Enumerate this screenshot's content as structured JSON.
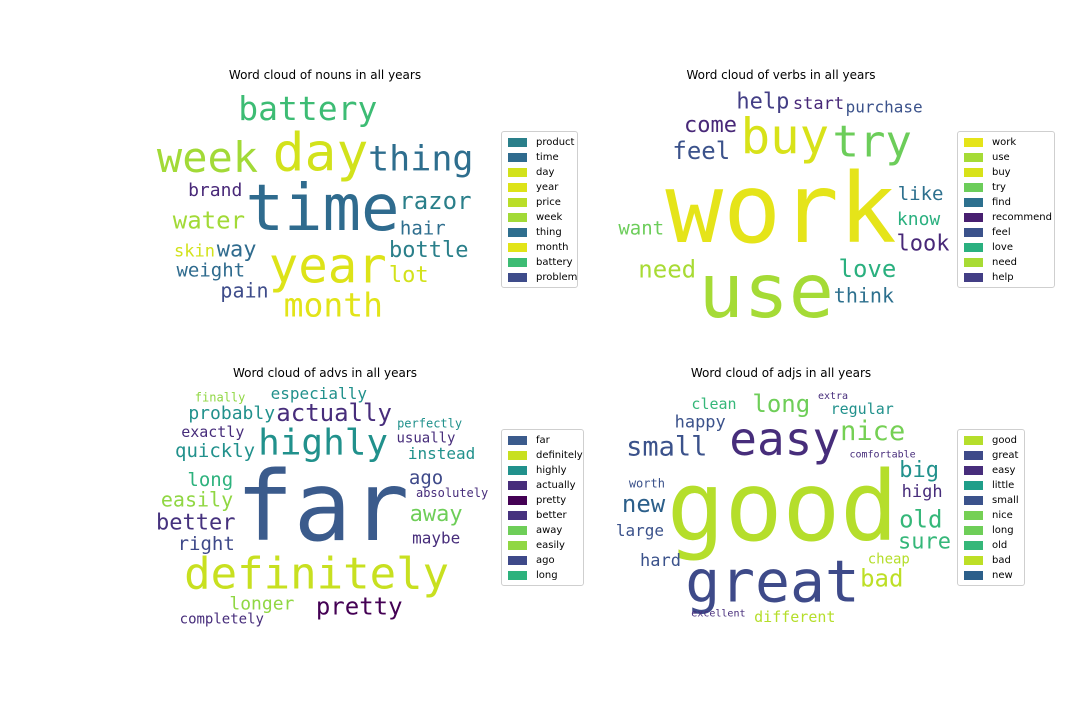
{
  "chart_data": [
    {
      "type": "wordcloud",
      "title": "Word cloud of nouns in all years",
      "legend": [
        {
          "word": "product",
          "color": "#2a7f8a"
        },
        {
          "word": "time",
          "color": "#2f6b8e"
        },
        {
          "word": "day",
          "color": "#d2e21b"
        },
        {
          "word": "year",
          "color": "#dde318"
        },
        {
          "word": "price",
          "color": "#bade28"
        },
        {
          "word": "week",
          "color": "#a2da37"
        },
        {
          "word": "thing",
          "color": "#2e6e8e"
        },
        {
          "word": "month",
          "color": "#e2e418"
        },
        {
          "word": "battery",
          "color": "#3dbc74"
        },
        {
          "word": "problem",
          "color": "#3e4c8a"
        }
      ],
      "words": [
        {
          "text": "product",
          "weight": 1.0,
          "color": "#2a7f8a"
        },
        {
          "text": "time",
          "weight": 0.62,
          "color": "#2f6b8e"
        },
        {
          "text": "day",
          "weight": 0.5,
          "color": "#d2e21b"
        },
        {
          "text": "year",
          "weight": 0.45,
          "color": "#dde318"
        },
        {
          "text": "price",
          "weight": 0.42,
          "color": "#bade28"
        },
        {
          "text": "week",
          "weight": 0.38,
          "color": "#a2da37"
        },
        {
          "text": "thing",
          "weight": 0.3,
          "color": "#2e6e8e"
        },
        {
          "text": "month",
          "weight": 0.28,
          "color": "#e2e418"
        },
        {
          "text": "battery",
          "weight": 0.28,
          "color": "#3dbc74"
        },
        {
          "text": "problem",
          "weight": 0.26,
          "color": "#3e4c8a"
        },
        {
          "text": "razor",
          "weight": 0.2,
          "color": "#2a7f8a"
        },
        {
          "text": "water",
          "weight": 0.2,
          "color": "#a2da37"
        },
        {
          "text": "way",
          "weight": 0.18,
          "color": "#2f6b8e"
        },
        {
          "text": "bottle",
          "weight": 0.18,
          "color": "#2a7f8a"
        },
        {
          "text": "lot",
          "weight": 0.18,
          "color": "#d2e21b"
        },
        {
          "text": "pain",
          "weight": 0.16,
          "color": "#3e4c8a"
        },
        {
          "text": "weight",
          "weight": 0.15,
          "color": "#2f6b8e"
        },
        {
          "text": "hair",
          "weight": 0.15,
          "color": "#2e6e8e"
        },
        {
          "text": "brand",
          "weight": 0.14,
          "color": "#482878"
        },
        {
          "text": "skin",
          "weight": 0.13,
          "color": "#d2e21b"
        }
      ]
    },
    {
      "type": "wordcloud",
      "title": "Word cloud of verbs in all years",
      "legend": [
        {
          "word": "work",
          "color": "#e5e419"
        },
        {
          "word": "use",
          "color": "#a5db36"
        },
        {
          "word": "buy",
          "color": "#d8e219"
        },
        {
          "word": "try",
          "color": "#6ccd5a"
        },
        {
          "word": "find",
          "color": "#2d708e"
        },
        {
          "word": "recommend",
          "color": "#481f70"
        },
        {
          "word": "feel",
          "color": "#3b528b"
        },
        {
          "word": "love",
          "color": "#2ab07f"
        },
        {
          "word": "need",
          "color": "#a8db34"
        },
        {
          "word": "help",
          "color": "#433e85"
        }
      ],
      "words": [
        {
          "text": "work",
          "weight": 1.0,
          "color": "#e5e419"
        },
        {
          "text": "use",
          "weight": 0.75,
          "color": "#a5db36"
        },
        {
          "text": "buy",
          "weight": 0.45,
          "color": "#d8e219"
        },
        {
          "text": "try",
          "weight": 0.4,
          "color": "#6ccd5a"
        },
        {
          "text": "find",
          "weight": 0.38,
          "color": "#2d708e"
        },
        {
          "text": "recommend",
          "weight": 0.24,
          "color": "#481f70"
        },
        {
          "text": "feel",
          "weight": 0.2,
          "color": "#3b528b"
        },
        {
          "text": "love",
          "weight": 0.2,
          "color": "#2ab07f"
        },
        {
          "text": "need",
          "weight": 0.2,
          "color": "#a8db34"
        },
        {
          "text": "help",
          "weight": 0.18,
          "color": "#433e85"
        },
        {
          "text": "come",
          "weight": 0.18,
          "color": "#482878"
        },
        {
          "text": "look",
          "weight": 0.18,
          "color": "#482878"
        },
        {
          "text": "think",
          "weight": 0.16,
          "color": "#2d708e"
        },
        {
          "text": "like",
          "weight": 0.15,
          "color": "#2d708e"
        },
        {
          "text": "want",
          "weight": 0.15,
          "color": "#6ccd5a"
        },
        {
          "text": "know",
          "weight": 0.14,
          "color": "#2ab07f"
        },
        {
          "text": "start",
          "weight": 0.13,
          "color": "#482878"
        },
        {
          "text": "purchase",
          "weight": 0.12,
          "color": "#3b528b"
        }
      ]
    },
    {
      "type": "wordcloud",
      "title": "Word cloud of advs in all years",
      "legend": [
        {
          "word": "far",
          "color": "#3b5b8c"
        },
        {
          "word": "definitely",
          "color": "#c8e020"
        },
        {
          "word": "highly",
          "color": "#21918c"
        },
        {
          "word": "actually",
          "color": "#472d7b"
        },
        {
          "word": "pretty",
          "color": "#440154"
        },
        {
          "word": "better",
          "color": "#46327e"
        },
        {
          "word": "away",
          "color": "#6ece58"
        },
        {
          "word": "easily",
          "color": "#90d743"
        },
        {
          "word": "ago",
          "color": "#3e4989"
        },
        {
          "word": "long",
          "color": "#2db27d"
        }
      ],
      "words": [
        {
          "text": "far",
          "weight": 1.0,
          "color": "#3b5b8c"
        },
        {
          "text": "definitely",
          "weight": 0.4,
          "color": "#c8e020"
        },
        {
          "text": "highly",
          "weight": 0.32,
          "color": "#21918c"
        },
        {
          "text": "actually",
          "weight": 0.2,
          "color": "#472d7b"
        },
        {
          "text": "pretty",
          "weight": 0.2,
          "color": "#440154"
        },
        {
          "text": "better",
          "weight": 0.18,
          "color": "#46327e"
        },
        {
          "text": "away",
          "weight": 0.18,
          "color": "#6ece58"
        },
        {
          "text": "easily",
          "weight": 0.16,
          "color": "#90d743"
        },
        {
          "text": "ago",
          "weight": 0.15,
          "color": "#3e4989"
        },
        {
          "text": "long",
          "weight": 0.15,
          "color": "#2db27d"
        },
        {
          "text": "right",
          "weight": 0.15,
          "color": "#3e4989"
        },
        {
          "text": "quickly",
          "weight": 0.15,
          "color": "#21918c"
        },
        {
          "text": "longer",
          "weight": 0.14,
          "color": "#90d743"
        },
        {
          "text": "probably",
          "weight": 0.14,
          "color": "#21918c"
        },
        {
          "text": "instead",
          "weight": 0.12,
          "color": "#21918c"
        },
        {
          "text": "especially",
          "weight": 0.12,
          "color": "#21918c"
        },
        {
          "text": "maybe",
          "weight": 0.12,
          "color": "#472d7b"
        },
        {
          "text": "exactly",
          "weight": 0.11,
          "color": "#472d7b"
        },
        {
          "text": "usually",
          "weight": 0.1,
          "color": "#472d7b"
        },
        {
          "text": "completely",
          "weight": 0.1,
          "color": "#472d7b"
        },
        {
          "text": "absolutely",
          "weight": 0.09,
          "color": "#472d7b"
        },
        {
          "text": "perfectly",
          "weight": 0.09,
          "color": "#21918c"
        },
        {
          "text": "finally",
          "weight": 0.09,
          "color": "#90d743"
        }
      ]
    },
    {
      "type": "wordcloud",
      "title": "Word cloud of adjs in all years",
      "legend": [
        {
          "word": "good",
          "color": "#b5de2b"
        },
        {
          "word": "great",
          "color": "#3e4a89"
        },
        {
          "word": "easy",
          "color": "#472d7b"
        },
        {
          "word": "little",
          "color": "#1f9e89"
        },
        {
          "word": "small",
          "color": "#3b528b"
        },
        {
          "word": "nice",
          "color": "#75d054"
        },
        {
          "word": "long",
          "color": "#6ece58"
        },
        {
          "word": "old",
          "color": "#35b779"
        },
        {
          "word": "bad",
          "color": "#bddf26"
        },
        {
          "word": "new",
          "color": "#2c5f8a"
        }
      ],
      "words": [
        {
          "text": "good",
          "weight": 1.0,
          "color": "#b5de2b"
        },
        {
          "text": "great",
          "weight": 0.55,
          "color": "#3e4a89"
        },
        {
          "text": "easy",
          "weight": 0.42,
          "color": "#472d7b"
        },
        {
          "text": "little",
          "weight": 0.3,
          "color": "#1f9e89"
        },
        {
          "text": "small",
          "weight": 0.22,
          "color": "#3b528b"
        },
        {
          "text": "nice",
          "weight": 0.22,
          "color": "#75d054"
        },
        {
          "text": "long",
          "weight": 0.2,
          "color": "#6ece58"
        },
        {
          "text": "old",
          "weight": 0.2,
          "color": "#35b779"
        },
        {
          "text": "bad",
          "weight": 0.2,
          "color": "#bddf26"
        },
        {
          "text": "new",
          "weight": 0.2,
          "color": "#2c5f8a"
        },
        {
          "text": "big",
          "weight": 0.18,
          "color": "#21918c"
        },
        {
          "text": "sure",
          "weight": 0.18,
          "color": "#35b779"
        },
        {
          "text": "happy",
          "weight": 0.13,
          "color": "#3b528b"
        },
        {
          "text": "high",
          "weight": 0.13,
          "color": "#472d7b"
        },
        {
          "text": "hard",
          "weight": 0.13,
          "color": "#3b528b"
        },
        {
          "text": "large",
          "weight": 0.12,
          "color": "#3b528b"
        },
        {
          "text": "different",
          "weight": 0.11,
          "color": "#b5de2b"
        },
        {
          "text": "clean",
          "weight": 0.11,
          "color": "#35b779"
        },
        {
          "text": "regular",
          "weight": 0.11,
          "color": "#21918c"
        },
        {
          "text": "cheap",
          "weight": 0.1,
          "color": "#b5de2b"
        },
        {
          "text": "worth",
          "weight": 0.09,
          "color": "#3b528b"
        },
        {
          "text": "excellent",
          "weight": 0.07,
          "color": "#472d7b"
        },
        {
          "text": "comfortable",
          "weight": 0.07,
          "color": "#472d7b"
        },
        {
          "text": "extra",
          "weight": 0.07,
          "color": "#472d7b"
        }
      ]
    }
  ]
}
